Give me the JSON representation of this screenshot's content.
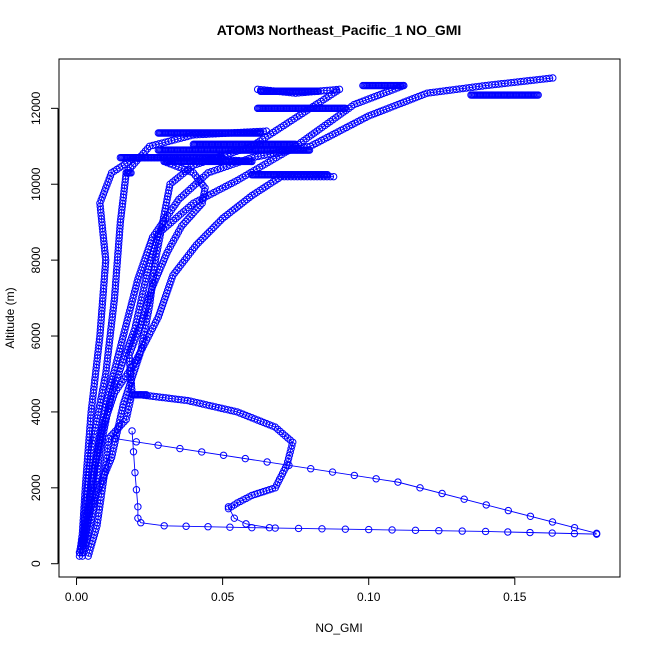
{
  "chart_data": {
    "type": "scatter",
    "title": "ATOM3 Northeast_Pacific_1 NO_GMI",
    "xlabel": "NO_GMI",
    "ylabel": "Altitude (m)",
    "xlim": [
      -0.006,
      0.186
    ],
    "ylim": [
      -350,
      13300
    ],
    "xticks": [
      0.0,
      0.05,
      0.1,
      0.15
    ],
    "xtick_labels": [
      "0.00",
      "0.05",
      "0.10",
      "0.15"
    ],
    "yticks": [
      0,
      2000,
      4000,
      6000,
      8000,
      10000,
      12000
    ],
    "ytick_labels": [
      "0",
      "2000",
      "4000",
      "6000",
      "8000",
      "10000",
      "12000"
    ],
    "grid": false,
    "legend": "none",
    "color": "#0000ff",
    "marker": "open-circle",
    "profiles": [
      {
        "points": [
          [
            0.001,
            200
          ],
          [
            0.002,
            800
          ],
          [
            0.003,
            2000
          ],
          [
            0.005,
            4000
          ],
          [
            0.008,
            6000
          ],
          [
            0.01,
            8000
          ],
          [
            0.008,
            9500
          ],
          [
            0.012,
            10300
          ],
          [
            0.02,
            10700
          ],
          [
            0.04,
            10700
          ],
          [
            0.06,
            10600
          ]
        ]
      },
      {
        "points": [
          [
            0.002,
            200
          ],
          [
            0.003,
            1500
          ],
          [
            0.005,
            3000
          ],
          [
            0.01,
            5000
          ],
          [
            0.013,
            7000
          ],
          [
            0.015,
            9000
          ],
          [
            0.017,
            10300
          ],
          [
            0.025,
            11000
          ],
          [
            0.04,
            11300
          ],
          [
            0.065,
            11400
          ]
        ]
      },
      {
        "points": [
          [
            0.001,
            300
          ],
          [
            0.004,
            1200
          ],
          [
            0.006,
            2500
          ],
          [
            0.01,
            4200
          ],
          [
            0.016,
            6000
          ],
          [
            0.021,
            7500
          ],
          [
            0.026,
            8600
          ],
          [
            0.035,
            9600
          ],
          [
            0.045,
            10300
          ],
          [
            0.06,
            10700
          ],
          [
            0.08,
            11000
          ],
          [
            0.1,
            11800
          ],
          [
            0.12,
            12400
          ],
          [
            0.14,
            12600
          ],
          [
            0.163,
            12800
          ]
        ]
      },
      {
        "points": [
          [
            0.003,
            400
          ],
          [
            0.006,
            1500
          ],
          [
            0.008,
            3000
          ],
          [
            0.012,
            4500
          ],
          [
            0.02,
            6200
          ],
          [
            0.024,
            7600
          ],
          [
            0.028,
            8700
          ],
          [
            0.04,
            9500
          ],
          [
            0.055,
            10100
          ],
          [
            0.075,
            11000
          ],
          [
            0.095,
            12100
          ],
          [
            0.112,
            12600
          ]
        ]
      },
      {
        "points": [
          [
            0.002,
            500
          ],
          [
            0.005,
            2000
          ],
          [
            0.009,
            3600
          ],
          [
            0.013,
            4500
          ],
          [
            0.02,
            5300
          ],
          [
            0.028,
            6500
          ],
          [
            0.033,
            7600
          ],
          [
            0.041,
            8400
          ],
          [
            0.05,
            9100
          ],
          [
            0.06,
            9700
          ],
          [
            0.07,
            10200
          ],
          [
            0.088,
            10200
          ]
        ]
      },
      {
        "points": [
          [
            0.004,
            200
          ],
          [
            0.007,
            1000
          ],
          [
            0.01,
            2600
          ],
          [
            0.011,
            3300
          ],
          [
            0.017,
            3800
          ],
          [
            0.019,
            4500
          ],
          [
            0.018,
            5500
          ],
          [
            0.022,
            6300
          ],
          [
            0.026,
            7300
          ],
          [
            0.031,
            8200
          ],
          [
            0.036,
            8900
          ],
          [
            0.043,
            9500
          ],
          [
            0.044,
            9900
          ],
          [
            0.04,
            10300
          ],
          [
            0.03,
            10600
          ]
        ]
      },
      {
        "points": [
          [
            0.002,
            300
          ],
          [
            0.005,
            1500
          ],
          [
            0.012,
            2800
          ],
          [
            0.016,
            4200
          ],
          [
            0.022,
            5600
          ],
          [
            0.025,
            6800
          ],
          [
            0.027,
            8000
          ],
          [
            0.03,
            9200
          ],
          [
            0.032,
            10000
          ],
          [
            0.04,
            10500
          ],
          [
            0.06,
            11000
          ],
          [
            0.08,
            12000
          ],
          [
            0.09,
            12500
          ],
          [
            0.075,
            12400
          ],
          [
            0.062,
            12500
          ]
        ]
      },
      {
        "points": [
          [
            0.022,
            4450
          ],
          [
            0.038,
            4300
          ],
          [
            0.055,
            4000
          ],
          [
            0.068,
            3600
          ],
          [
            0.074,
            3200
          ],
          [
            0.072,
            2600
          ],
          [
            0.068,
            2000
          ],
          [
            0.06,
            1800
          ],
          [
            0.055,
            1600
          ],
          [
            0.052,
            1450
          ]
        ]
      },
      {
        "points": [
          [
            0.013,
            3300
          ],
          [
            0.11,
            2150
          ],
          [
            0.178,
            800
          ]
        ]
      },
      {
        "points": [
          [
            0.019,
            3500
          ],
          [
            0.02,
            2400
          ],
          [
            0.021,
            1500
          ],
          [
            0.021,
            1200
          ],
          [
            0.022,
            1080
          ],
          [
            0.03,
            1000
          ],
          [
            0.06,
            950
          ],
          [
            0.1,
            900
          ],
          [
            0.14,
            850
          ],
          [
            0.178,
            780
          ]
        ]
      },
      {
        "points": [
          [
            0.052,
            1500
          ],
          [
            0.054,
            1200
          ],
          [
            0.058,
            1050
          ],
          [
            0.066,
            950
          ]
        ]
      }
    ],
    "level_runs": [
      {
        "altitude": 12450,
        "x_start": 0.063,
        "x_end": 0.083
      },
      {
        "altitude": 12350,
        "x_start": 0.135,
        "x_end": 0.158
      },
      {
        "altitude": 12600,
        "x_start": 0.098,
        "x_end": 0.112
      },
      {
        "altitude": 12000,
        "x_start": 0.062,
        "x_end": 0.092
      },
      {
        "altitude": 11350,
        "x_start": 0.028,
        "x_end": 0.063
      },
      {
        "altitude": 11050,
        "x_start": 0.04,
        "x_end": 0.075
      },
      {
        "altitude": 10900,
        "x_start": 0.028,
        "x_end": 0.08
      },
      {
        "altitude": 10700,
        "x_start": 0.015,
        "x_end": 0.05
      },
      {
        "altitude": 10600,
        "x_start": 0.03,
        "x_end": 0.06
      },
      {
        "altitude": 10250,
        "x_start": 0.06,
        "x_end": 0.086
      },
      {
        "altitude": 10300,
        "x_start": 0.017,
        "x_end": 0.019
      },
      {
        "altitude": 4450,
        "x_start": 0.019,
        "x_end": 0.024
      }
    ]
  }
}
